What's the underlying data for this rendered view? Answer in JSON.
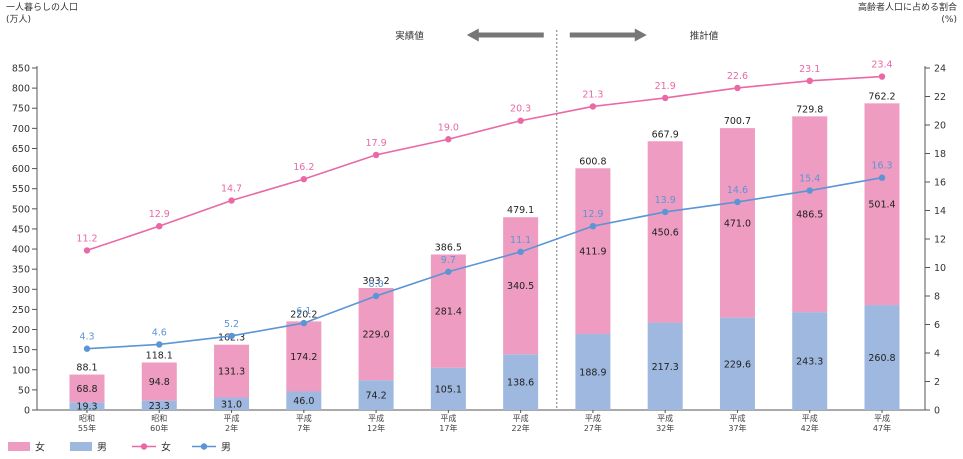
{
  "chart_data": {
    "type": "bar",
    "left_axis_title": [
      "一人暮らしの人口",
      "(万人)"
    ],
    "right_axis_title": [
      "高齢者人口に占める割合",
      "(%)"
    ],
    "annotations": {
      "actual": "実績値",
      "projected": "推計値"
    },
    "categories": [
      [
        "昭和",
        "55年"
      ],
      [
        "昭和",
        "60年"
      ],
      [
        "平成",
        "2年"
      ],
      [
        "平成",
        "7年"
      ],
      [
        "平成",
        "12年"
      ],
      [
        "平成",
        "17年"
      ],
      [
        "平成",
        "22年"
      ],
      [
        "平成",
        "27年"
      ],
      [
        "平成",
        "32年"
      ],
      [
        "平成",
        "37年"
      ],
      [
        "平成",
        "42年"
      ],
      [
        "平成",
        "47年"
      ]
    ],
    "bars": {
      "male": {
        "name": "男",
        "color": "#9fb8df",
        "values": [
          19.3,
          23.3,
          31.0,
          46.0,
          74.2,
          105.1,
          138.6,
          188.9,
          217.3,
          229.6,
          243.3,
          260.8
        ]
      },
      "female": {
        "name": "女",
        "color": "#ee9cc1",
        "values": [
          68.8,
          94.8,
          131.3,
          174.2,
          229.0,
          281.4,
          340.5,
          411.9,
          450.6,
          471.0,
          486.5,
          501.4
        ]
      },
      "totals": [
        88.1,
        118.1,
        162.3,
        220.2,
        303.2,
        386.5,
        479.1,
        600.8,
        667.9,
        700.7,
        729.8,
        762.2
      ]
    },
    "lines": {
      "female": {
        "name": "女",
        "color": "#ea68a6",
        "values": [
          11.2,
          12.9,
          14.7,
          16.2,
          17.9,
          19.0,
          20.3,
          21.3,
          21.9,
          22.6,
          23.1,
          23.4
        ]
      },
      "male": {
        "name": "男",
        "color": "#5b95d6",
        "values": [
          4.3,
          4.6,
          5.2,
          6.1,
          8.0,
          9.7,
          11.1,
          12.9,
          13.9,
          14.6,
          15.4,
          16.3
        ]
      }
    },
    "left_ticks": [
      0,
      50,
      100,
      150,
      200,
      250,
      300,
      350,
      400,
      450,
      500,
      550,
      600,
      650,
      700,
      750,
      800,
      850
    ],
    "right_ticks": [
      0,
      2,
      4,
      6,
      8,
      10,
      12,
      14,
      16,
      18,
      20,
      22,
      24
    ],
    "left_ylim": [
      0,
      850
    ],
    "right_ylim": [
      0,
      24
    ],
    "projection_start_index": 7,
    "legend": [
      {
        "kind": "bar",
        "series": "female",
        "label": "女"
      },
      {
        "kind": "bar",
        "series": "male",
        "label": "男"
      },
      {
        "kind": "line",
        "series": "female",
        "label": "女"
      },
      {
        "kind": "line",
        "series": "male",
        "label": "男"
      }
    ],
    "grid": false,
    "legend_position": "bottom-left"
  }
}
